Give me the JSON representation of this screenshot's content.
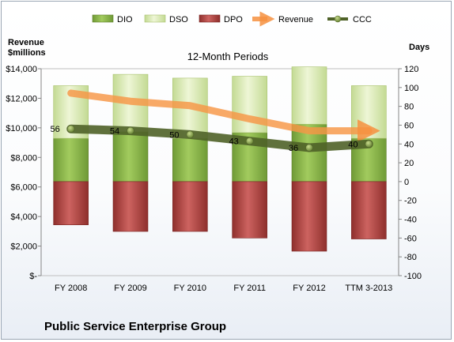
{
  "chart_data": {
    "type": "bar",
    "title": "12-Month Periods",
    "footer_title": "Public Service Enterprise Group",
    "left_axis_label_lines": [
      "Revenue",
      "$millions"
    ],
    "right_axis_label": "Days",
    "categories": [
      "FY 2008",
      "FY 2009",
      "FY 2010",
      "FY 2011",
      "FY 2012",
      "TTM 3-2013"
    ],
    "left_ticks": [
      "$-",
      "$2,000",
      "$4,000",
      "$6,000",
      "$8,000",
      "$10,000",
      "$12,000",
      "$14,000"
    ],
    "left_ylim": [
      0,
      14000
    ],
    "right_ticks": [
      "-100",
      "-80",
      "-60",
      "-40",
      "-20",
      "0",
      "20",
      "40",
      "60",
      "80",
      "100",
      "120"
    ],
    "right_ylim": [
      -100,
      120
    ],
    "legend": [
      "DIO",
      "DSO",
      "DPO",
      "Revenue",
      "CCC"
    ],
    "series": [
      {
        "name": "DIO",
        "axis": "days",
        "values": [
          46,
          53,
          46,
          52,
          61,
          46
        ],
        "color": "#8cb84a"
      },
      {
        "name": "DSO",
        "axis": "days",
        "values": [
          56,
          61,
          64,
          60,
          61,
          56
        ],
        "color": "#d5e6ad"
      },
      {
        "name": "DPO",
        "axis": "days",
        "values": [
          -46,
          -53,
          -53,
          -60,
          -74,
          -61
        ],
        "color": "#c0504d"
      },
      {
        "name": "Revenue",
        "axis": "revenue",
        "values": [
          12350,
          11800,
          11500,
          10600,
          9800,
          9800
        ],
        "color": "#f79646"
      },
      {
        "name": "CCC",
        "axis": "days",
        "values": [
          56,
          54,
          50,
          43,
          36,
          40
        ],
        "color": "#4f6228"
      }
    ]
  }
}
